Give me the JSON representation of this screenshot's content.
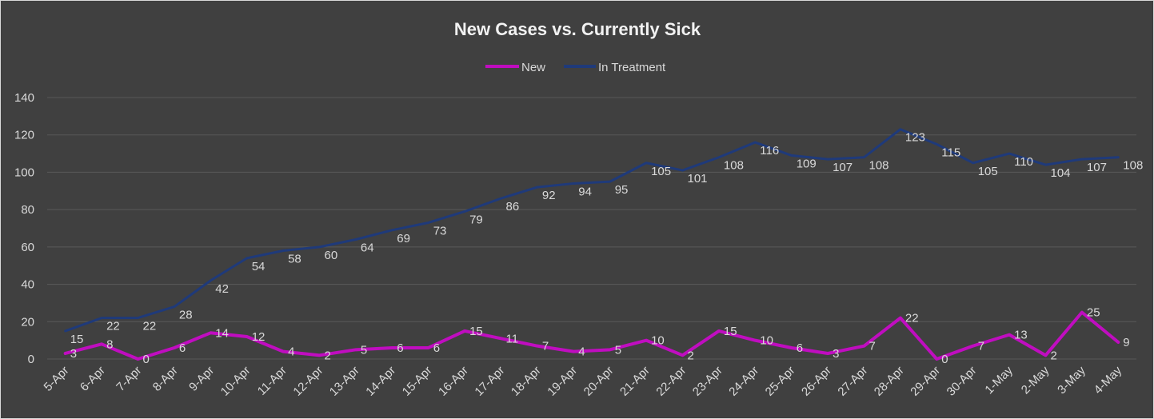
{
  "chart_data": {
    "type": "line",
    "title": "New Cases vs. Currently Sick",
    "xlabel": "",
    "ylabel": "",
    "ylim": [
      0,
      140
    ],
    "y_ticks": [
      0,
      20,
      40,
      60,
      80,
      100,
      120,
      140
    ],
    "grid": true,
    "legend_position": "top-center",
    "background_color": "#404040",
    "gridline_color": "#595959",
    "text_color": "#d9d9d9",
    "categories": [
      "5-Apr",
      "6-Apr",
      "7-Apr",
      "8-Apr",
      "9-Apr",
      "10-Apr",
      "11-Apr",
      "12-Apr",
      "13-Apr",
      "14-Apr",
      "15-Apr",
      "16-Apr",
      "17-Apr",
      "18-Apr",
      "19-Apr",
      "20-Apr",
      "21-Apr",
      "22-Apr",
      "23-Apr",
      "24-Apr",
      "25-Apr",
      "26-Apr",
      "27-Apr",
      "28-Apr",
      "29-Apr",
      "30-Apr",
      "1-May",
      "2-May",
      "3-May",
      "4-May"
    ],
    "series": [
      {
        "name": "New",
        "color": "#c00dc0",
        "values": [
          3,
          8,
          0,
          6,
          14,
          12,
          4,
          2,
          5,
          6,
          6,
          15,
          11,
          7,
          4,
          5,
          10,
          2,
          15,
          10,
          6,
          3,
          7,
          22,
          0,
          7,
          13,
          2,
          25,
          9
        ]
      },
      {
        "name": "In Treatment",
        "color": "#1f3a7a",
        "values": [
          15,
          22,
          22,
          28,
          42,
          54,
          58,
          60,
          64,
          69,
          73,
          79,
          86,
          92,
          94,
          95,
          105,
          101,
          108,
          116,
          109,
          107,
          108,
          123,
          115,
          105,
          110,
          104,
          107,
          108
        ]
      }
    ]
  }
}
